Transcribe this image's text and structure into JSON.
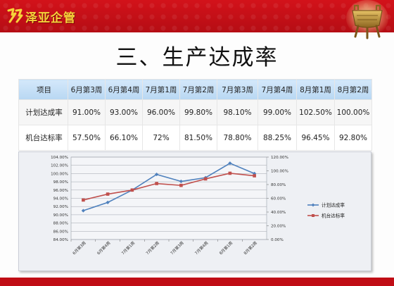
{
  "header": {
    "logo_text": "泽亚企管",
    "band_color": "#c8101a",
    "logo_color": "#f5d33a",
    "right_icon": "bronze-cauldron-icon"
  },
  "title": "三、生产达成率",
  "table": {
    "headers": [
      "项目",
      "6月第3周",
      "6月第4周",
      "7月第1周",
      "7月第2周",
      "7月第3周",
      "7月第4周",
      "8月第1周",
      "8月第2周"
    ],
    "rows": [
      {
        "label": "计划达成率",
        "values": [
          "91.00%",
          "93.00%",
          "96.00%",
          "99.80%",
          "98.10%",
          "99.00%",
          "102.50%",
          "100.00%"
        ]
      },
      {
        "label": "机台达标率",
        "values": [
          "57.50%",
          "66.10%",
          "72%",
          "81.50%",
          "78.80%",
          "88.25%",
          "96.45%",
          "92.80%"
        ]
      }
    ]
  },
  "chart_data": {
    "type": "line",
    "title": "",
    "categories": [
      "6月第3周",
      "6月第4周",
      "7月第1周",
      "7月第2周",
      "7月第3周",
      "7月第4周",
      "8月第1周",
      "8月第2周"
    ],
    "series": [
      {
        "name": "计划达成率",
        "values": [
          91.0,
          93.0,
          96.0,
          99.8,
          98.1,
          99.0,
          102.5,
          100.0
        ],
        "axis": "left",
        "color": "#4f81bd",
        "marker": "diamond"
      },
      {
        "name": "机台达标率",
        "values": [
          57.5,
          66.1,
          72.0,
          81.5,
          78.8,
          88.25,
          96.45,
          92.8
        ],
        "axis": "right",
        "color": "#c0504d",
        "marker": "square"
      }
    ],
    "y_left": {
      "min": 84,
      "max": 104,
      "step": 2,
      "ticks": [
        "84.00%",
        "86.00%",
        "88.00%",
        "90.00%",
        "92.00%",
        "94.00%",
        "96.00%",
        "98.00%",
        "100.00%",
        "102.00%",
        "104.00%"
      ]
    },
    "y_right": {
      "min": 0,
      "max": 120,
      "step": 20,
      "ticks": [
        "0.00%",
        "20.00%",
        "40.00%",
        "60.00%",
        "80.00%",
        "100.00%",
        "120.00%"
      ]
    },
    "grid": true,
    "legend": "right",
    "x_tick_rotation": "diagonal"
  }
}
